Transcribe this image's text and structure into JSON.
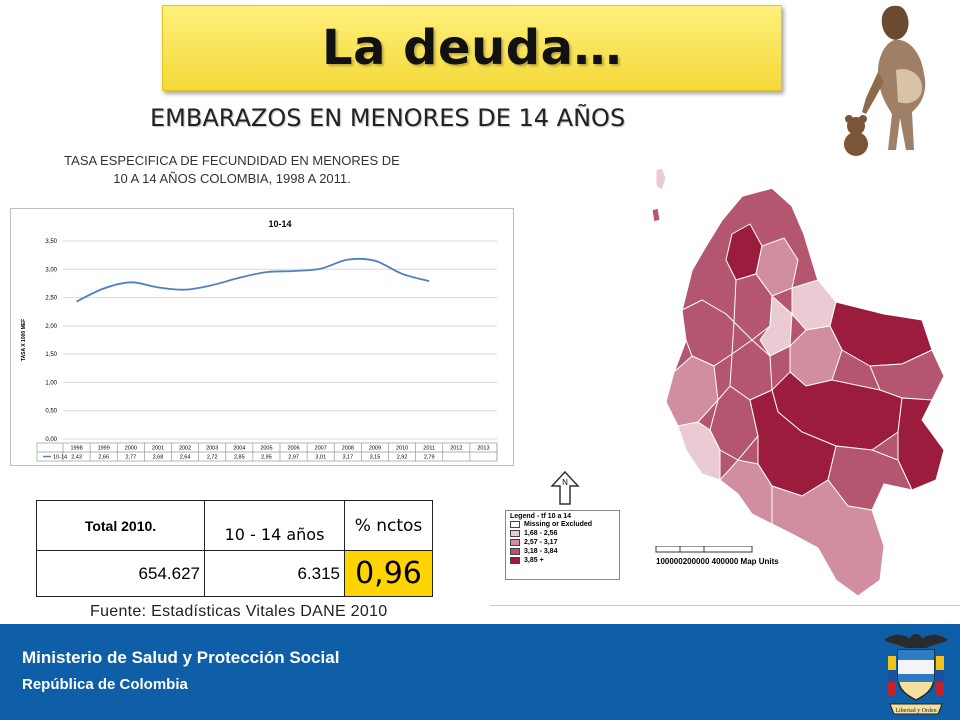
{
  "slide": {
    "title": "La deuda…",
    "subtitle": "EMBARAZOS  EN MENORES DE 14 AÑOS"
  },
  "chart": {
    "caption": "TASA ESPECIFICA DE FECUNDIDAD EN MENORES DE 10 A 14 AÑOS COLOMBIA, 1998 A 2011."
  },
  "chart_data": {
    "type": "line",
    "title": "10-14",
    "ylabel": "TASA X 1000 MEF",
    "ylim": [
      0,
      3.5
    ],
    "yticks": [
      "0,00",
      "0,50",
      "1,00",
      "1,50",
      "2,00",
      "2,50",
      "3,00",
      "3,50"
    ],
    "categories": [
      "1998",
      "1999",
      "2000",
      "2001",
      "2002",
      "2003",
      "2004",
      "2005",
      "2006",
      "2007",
      "2008",
      "2009",
      "2010",
      "2011",
      "2012",
      "2013"
    ],
    "series": [
      {
        "name": "10-14",
        "values": [
          2.43,
          2.66,
          2.77,
          2.68,
          2.64,
          2.72,
          2.85,
          2.95,
          2.97,
          3.01,
          3.17,
          3.15,
          2.92,
          2.79,
          null,
          null
        ],
        "labels": [
          "2,43",
          "2,66",
          "2,77",
          "2,68",
          "2,64",
          "2,72",
          "2,85",
          "2,95",
          "2,97",
          "3,01",
          "3,17",
          "3,15",
          "2,92",
          "2,79",
          "",
          ""
        ],
        "color": "#4f81bd"
      }
    ],
    "grid": true
  },
  "table": {
    "h1": "Total 2010.",
    "h2": "10 - 14 años",
    "h3": "% nctos",
    "v1": "654.627",
    "v2": "6.315",
    "v3": "0,96"
  },
  "source": "Fuente: Estadísticas Vitales DANE 2010",
  "map": {
    "legend_title": "Legend - tf 10 a 14",
    "legend_items": [
      {
        "label": "Missing or Excluded",
        "color": "#ffffff"
      },
      {
        "label": "1,68 - 2,56",
        "color": "#eacbd3"
      },
      {
        "label": "2,57 - 3,17",
        "color": "#d08ea0"
      },
      {
        "label": "3,18 - 3,84",
        "color": "#b4566f"
      },
      {
        "label": "3,85 +",
        "color": "#9b1c3c"
      }
    ],
    "scale_labels": "100000200000      400000 Map Units",
    "north_label": "N"
  },
  "footer": {
    "line1": "Ministerio de Salud y Protección Social",
    "line2": "República de Colombia",
    "color": "#0f5fa8"
  }
}
